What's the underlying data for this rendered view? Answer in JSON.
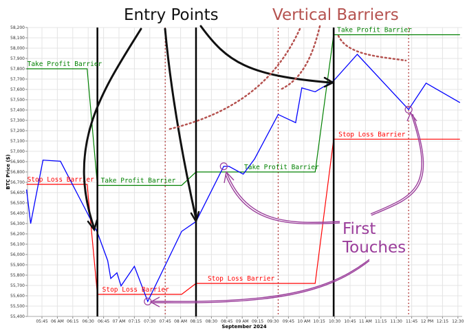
{
  "chart_data": {
    "type": "line",
    "xlabel": "September 2024",
    "ylabel": "BTC Price ($)",
    "xlim": [
      "05:30",
      "12:35"
    ],
    "ylim": [
      55400,
      58200
    ],
    "grid": true,
    "y_ticks": [
      "55,400",
      "55,500",
      "55,600",
      "55,700",
      "55,800",
      "55,900",
      "56,000",
      "56,100",
      "56,200",
      "56,300",
      "56,400",
      "56,500",
      "56,600",
      "56,700",
      "56,800",
      "56,900",
      "57,000",
      "57,100",
      "57,200",
      "57,300",
      "57,400",
      "57,500",
      "57,600",
      "57,700",
      "57,800",
      "57,900",
      "58,000",
      "58,100",
      "58,200"
    ],
    "x_ticks": [
      "05:45",
      "06 AM",
      "06:15",
      "06:30",
      "06:45",
      "07 AM",
      "07:15",
      "07:30",
      "07:45",
      "08 AM",
      "08:15",
      "08:30",
      "08:45",
      "09 AM",
      "09:15",
      "09:30",
      "09:45",
      "10 AM",
      "10:15",
      "10:30",
      "10:45",
      "11 AM",
      "11:15",
      "11:30",
      "11:45",
      "12 PM",
      "12:15",
      "12:30"
    ],
    "price": {
      "color": "#0000ff",
      "x": [
        "05:30",
        "05:34",
        "05:46",
        "06:03",
        "06:39",
        "06:49",
        "06:52",
        "06:58",
        "07:02",
        "07:15",
        "07:28",
        "08:01",
        "08:15",
        "08:42",
        "08:47",
        "09:01",
        "09:12",
        "09:35",
        "09:52",
        "09:58",
        "10:11",
        "10:29",
        "10:52",
        "11:42",
        "11:59",
        "12:32"
      ],
      "y": [
        56630,
        56300,
        56915,
        56904,
        56213,
        55941,
        55768,
        55823,
        55696,
        55886,
        55545,
        56224,
        56320,
        56855,
        56855,
        56779,
        56926,
        57357,
        57278,
        57615,
        57577,
        57684,
        57940,
        57405,
        57661,
        57472
      ]
    },
    "take_profit": {
      "label": "Take Profit Barrier",
      "color": "#008000",
      "x": [
        "05:30",
        "06:29",
        "06:39",
        "08:01",
        "08:15",
        "10:11",
        "10:29",
        "12:32"
      ],
      "y": [
        57800,
        57800,
        56670,
        56670,
        56800,
        56800,
        58130,
        58130
      ]
    },
    "stop_loss": {
      "label": "Stop Loss Barrier",
      "color": "#ff0000",
      "x": [
        "05:30",
        "06:29",
        "06:39",
        "08:01",
        "08:15",
        "10:11",
        "10:29",
        "12:32"
      ],
      "y": [
        56680,
        56680,
        55614,
        55614,
        55720,
        55720,
        57118,
        57118
      ]
    },
    "entry_points": [
      "06:39",
      "08:15",
      "10:29"
    ],
    "vertical_barriers": [
      "07:45",
      "09:35",
      "11:42"
    ],
    "first_touches": [
      {
        "x": "07:28",
        "y": 55545
      },
      {
        "x": "08:42",
        "y": 56855
      },
      {
        "x": "11:42",
        "y": 57405
      }
    ]
  },
  "annotations": {
    "entry_points": "Entry Points",
    "vertical_barriers": "Vertical Barriers",
    "first_touches_line1": "First",
    "first_touches_line2": "Touches",
    "entry_color": "#111111",
    "vertical_color": "#b5524f",
    "touch_color": "#9a3d9a"
  }
}
